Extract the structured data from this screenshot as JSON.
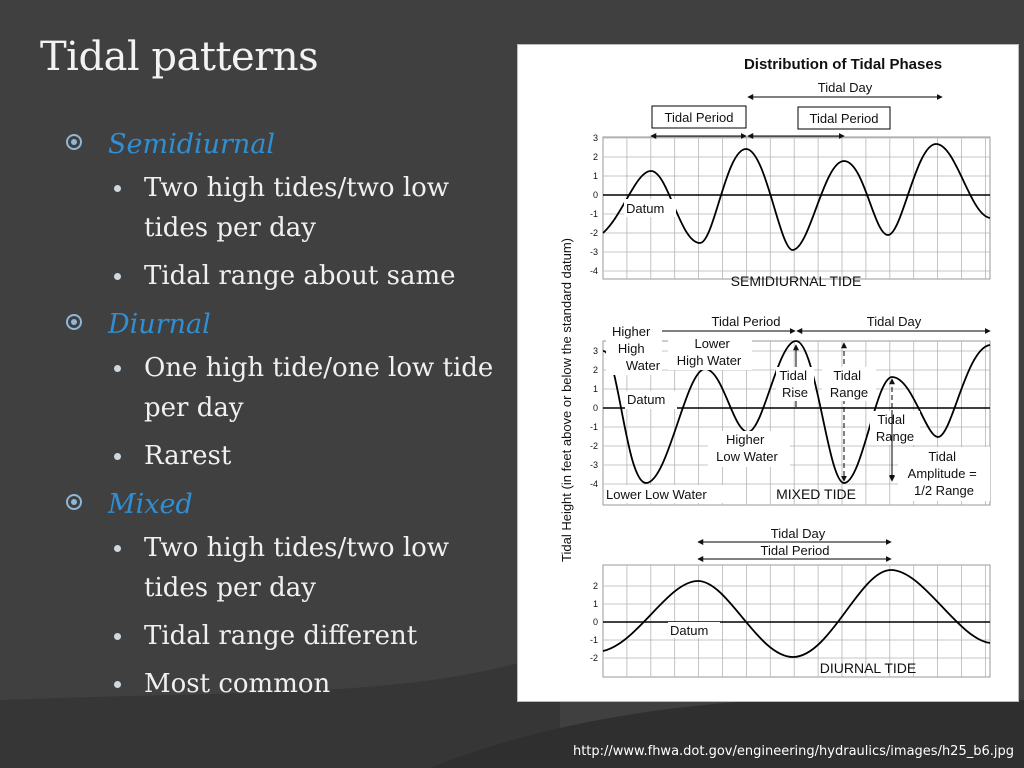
{
  "slide": {
    "title": "Tidal patterns",
    "source_url": "http://www.fhwa.dot.gov/engineering/hydraulics/images/h25_b6.jpg"
  },
  "bullets": [
    {
      "label": "Semidiurnal",
      "items": [
        "Two high tides/two low tides per day",
        "Tidal range about same"
      ]
    },
    {
      "label": "Diurnal",
      "items": [
        "One high tide/one low tide per day",
        "Rarest"
      ]
    },
    {
      "label": "Mixed",
      "items": [
        "Two high tides/two low tides per day",
        "Tidal range different",
        "Most common"
      ]
    }
  ],
  "colors": {
    "background": "#404040",
    "heading_accent": "#2f8fd2",
    "bullet_text": "#f0f0f0"
  },
  "figure": {
    "title": "Distribution of Tidal Phases",
    "y_axis_label": "Tidal Height (in feet above or below the standard datum)",
    "panels": {
      "semidiurnal": {
        "name": "SEMIDIURNAL TIDE",
        "ticks": [
          "3",
          "2",
          "1",
          "0",
          "-1",
          "-2",
          "-3",
          "-4"
        ],
        "labels": {
          "tidal_day": "Tidal Day",
          "tidal_period_1": "Tidal Period",
          "tidal_period_2": "Tidal Period",
          "datum": "Datum"
        }
      },
      "mixed": {
        "name": "MIXED TIDE",
        "ticks": [
          "3",
          "2",
          "1",
          "0",
          "-1",
          "-2",
          "-3",
          "-4"
        ],
        "labels": {
          "tidal_period": "Tidal Period",
          "tidal_day": "Tidal Day",
          "higher_high_water": [
            "Higher",
            "High",
            "Water"
          ],
          "lower_high_water": [
            "Lower",
            "High Water"
          ],
          "datum": "Datum",
          "tidal_rise": [
            "Tidal",
            "Rise"
          ],
          "tidal_range_1": [
            "Tidal",
            "Range"
          ],
          "tidal_range_2": [
            "Tidal",
            "Range"
          ],
          "higher_low_water": [
            "Higher",
            "Low Water"
          ],
          "tidal_amplitude": [
            "Tidal",
            "Amplitude =",
            "1/2 Range"
          ],
          "lower_low_water": "Lower Low Water"
        }
      },
      "diurnal": {
        "name": "DIURNAL TIDE",
        "ticks": [
          "2",
          "1",
          "0",
          "-1",
          "-2"
        ],
        "labels": {
          "tidal_day": "Tidal Day",
          "tidal_period": "Tidal Period",
          "datum": "Datum"
        }
      }
    }
  }
}
